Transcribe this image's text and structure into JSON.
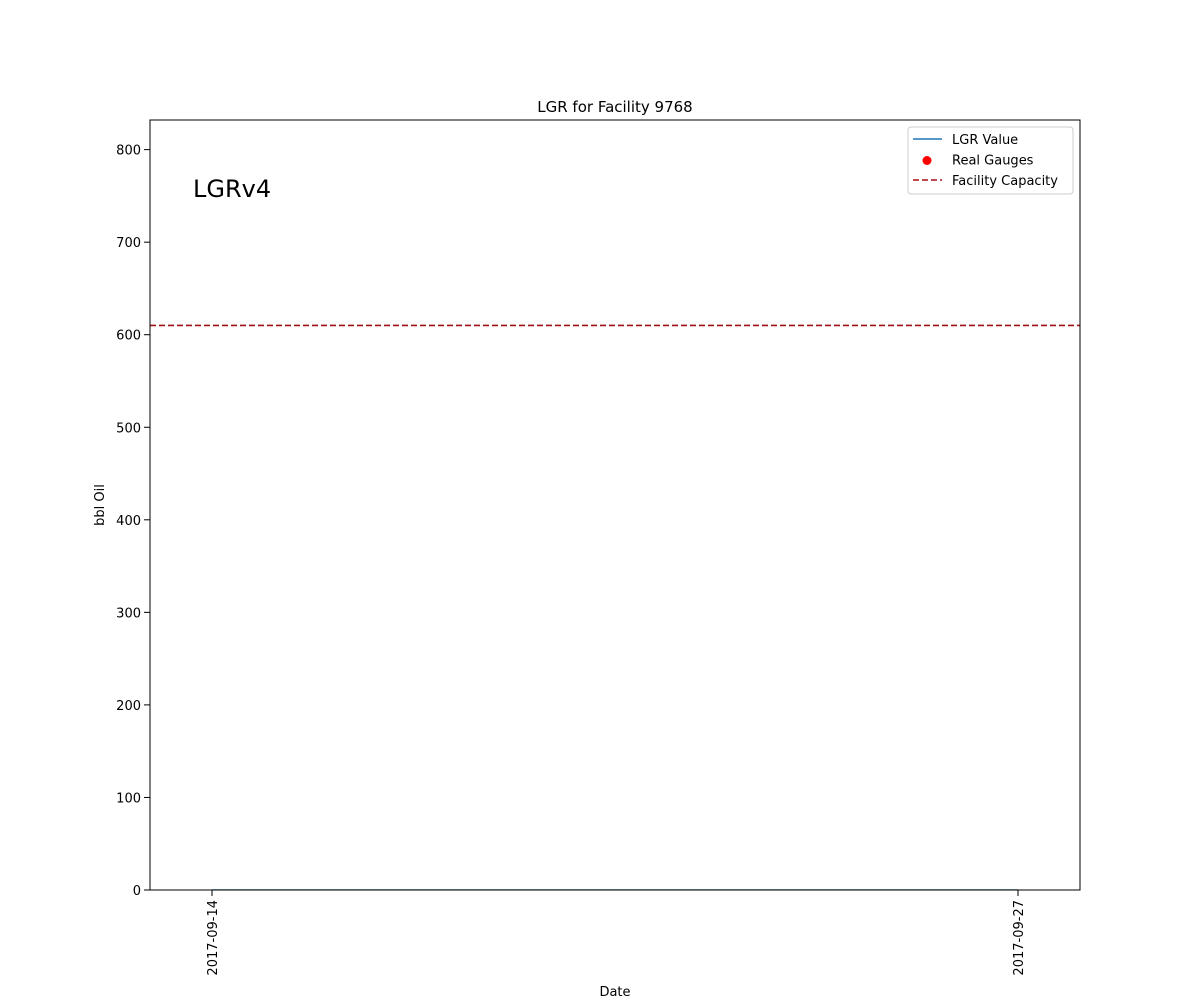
{
  "chart_data": {
    "type": "line",
    "title": "LGR for Facility 9768",
    "xlabel": "Date",
    "ylabel": "bbl Oil",
    "annotation": "LGRv4",
    "x_ticks": [
      "2017-09-14",
      "2017-09-27"
    ],
    "xlim": [
      "2017-09-13",
      "2017-09-28"
    ],
    "y_ticks": [
      0,
      100,
      200,
      300,
      400,
      500,
      600,
      700,
      800
    ],
    "ylim": [
      0,
      832
    ],
    "grid": false,
    "legend_position": "top-right",
    "series": [
      {
        "name": "LGR Value",
        "kind": "line",
        "color": "#1f77b4",
        "x": [
          "2017-09-14",
          "2017-09-27"
        ],
        "y": [
          0,
          0
        ]
      },
      {
        "name": "Real Gauges",
        "kind": "scatter",
        "color": "#ff0000",
        "x": [],
        "y": []
      },
      {
        "name": "Facility Capacity",
        "kind": "hline",
        "color": "#a50f15",
        "value": 610
      }
    ]
  }
}
